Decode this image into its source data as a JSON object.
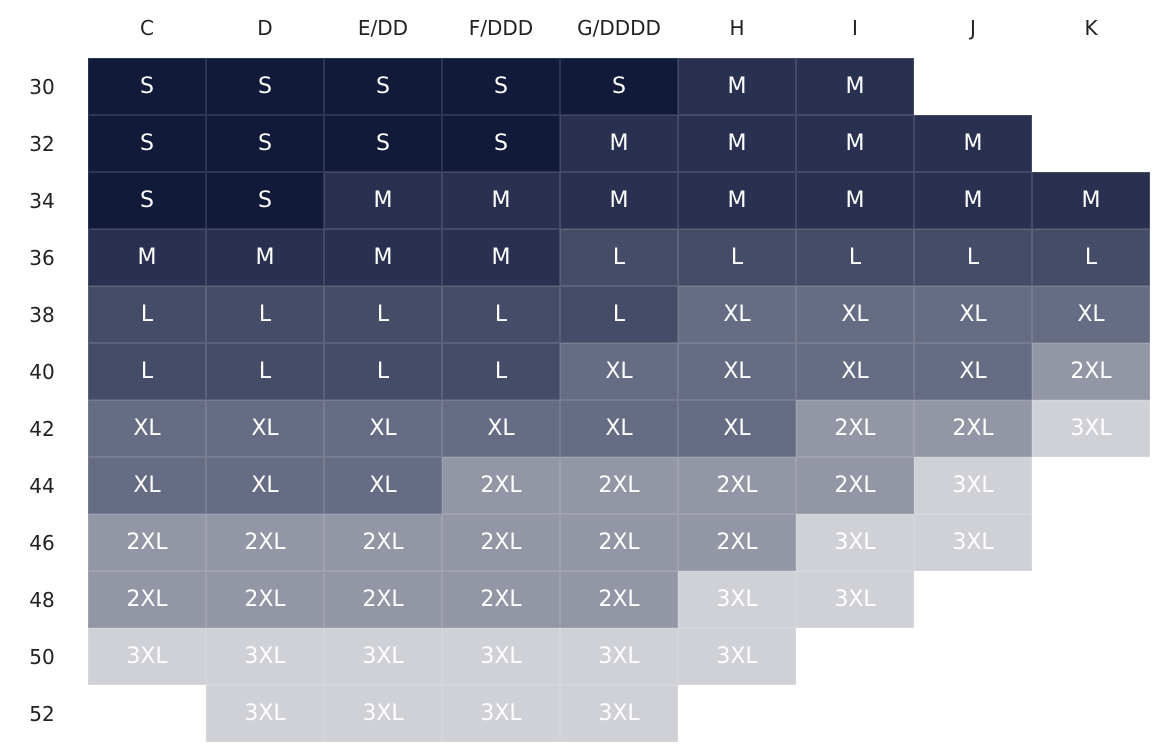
{
  "header": {
    "cups": [
      "C",
      "D",
      "E/DD",
      "F/DDD",
      "G/DDDD",
      "H",
      "I",
      "J",
      "K"
    ]
  },
  "table": {
    "rows": [
      {
        "band": "30",
        "cells": [
          "S",
          "S",
          "S",
          "S",
          "S",
          "M",
          "M",
          null,
          null
        ]
      },
      {
        "band": "32",
        "cells": [
          "S",
          "S",
          "S",
          "S",
          "M",
          "M",
          "M",
          "M",
          null
        ]
      },
      {
        "band": "34",
        "cells": [
          "S",
          "S",
          "M",
          "M",
          "M",
          "M",
          "M",
          "M",
          "M"
        ]
      },
      {
        "band": "36",
        "cells": [
          "M",
          "M",
          "M",
          "M",
          "L",
          "L",
          "L",
          "L",
          "L"
        ]
      },
      {
        "band": "38",
        "cells": [
          "L",
          "L",
          "L",
          "L",
          "L",
          "XL",
          "XL",
          "XL",
          "XL"
        ]
      },
      {
        "band": "40",
        "cells": [
          "L",
          "L",
          "L",
          "L",
          "XL",
          "XL",
          "XL",
          "XL",
          "2XL"
        ]
      },
      {
        "band": "42",
        "cells": [
          "XL",
          "XL",
          "XL",
          "XL",
          "XL",
          "XL",
          "2XL",
          "2XL",
          "3XL"
        ]
      },
      {
        "band": "44",
        "cells": [
          "XL",
          "XL",
          "XL",
          "2XL",
          "2XL",
          "2XL",
          "2XL",
          "3XL",
          null
        ]
      },
      {
        "band": "46",
        "cells": [
          "2XL",
          "2XL",
          "2XL",
          "2XL",
          "2XL",
          "2XL",
          "3XL",
          "3XL",
          null
        ]
      },
      {
        "band": "48",
        "cells": [
          "2XL",
          "2XL",
          "2XL",
          "2XL",
          "2XL",
          "3XL",
          "3XL",
          null,
          null
        ]
      },
      {
        "band": "50",
        "cells": [
          "3XL",
          "3XL",
          "3XL",
          "3XL",
          "3XL",
          "3XL",
          null,
          null,
          null
        ]
      },
      {
        "band": "52",
        "cells": [
          null,
          "3XL",
          "3XL",
          "3XL",
          "3XL",
          null,
          null,
          null,
          null
        ]
      }
    ]
  },
  "size_colors": {
    "S": "#121a3a",
    "M": "#2a3150",
    "L": "#454c67",
    "XL": "#666c83",
    "2XL": "#9396a5",
    "3XL": "#d0d1d7"
  }
}
